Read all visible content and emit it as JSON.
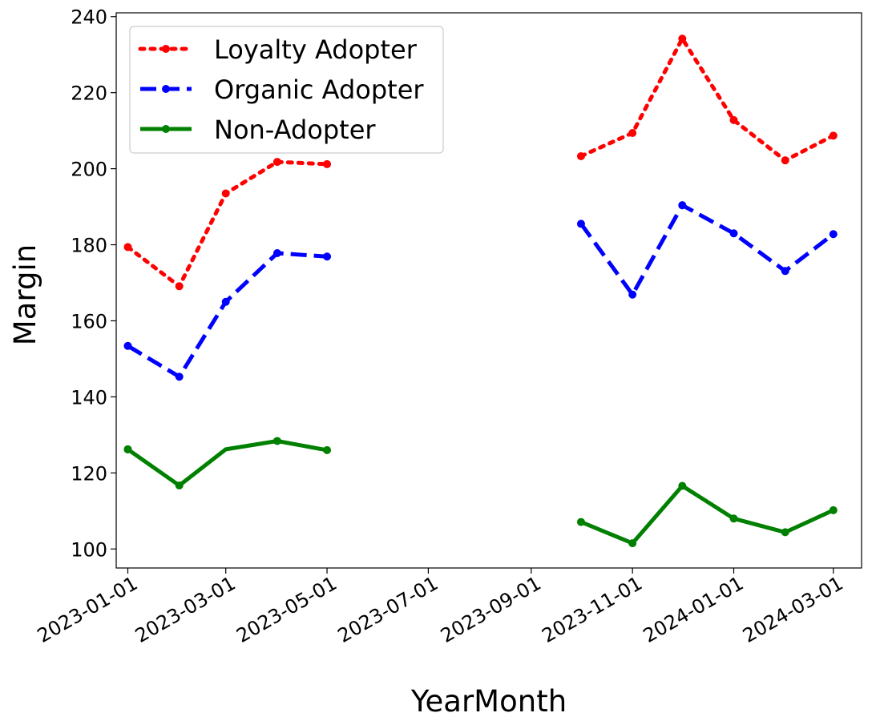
{
  "chart_data": {
    "type": "line",
    "xlabel": "YearMonth",
    "ylabel": "Margin",
    "ylim": [
      95,
      241
    ],
    "yticks": [
      100,
      120,
      140,
      160,
      180,
      200,
      220,
      240
    ],
    "xticks": [
      "2023-01-01",
      "2023-03-01",
      "2023-05-01",
      "2023-07-01",
      "2023-09-01",
      "2023-11-01",
      "2024-01-01",
      "2024-03-01"
    ],
    "x": [
      "2023-01-01",
      "2023-02-01",
      "2023-03-01",
      "2023-04-01",
      "2023-05-01",
      "2023-10-01",
      "2023-11-01",
      "2023-12-01",
      "2024-01-01",
      "2024-02-01",
      "2024-03-01"
    ],
    "segments": [
      [
        0,
        4
      ],
      [
        5,
        10
      ]
    ],
    "legend_position": "top-left",
    "series": [
      {
        "name": "Loyalty Adopter",
        "color": "#ff0000",
        "style": "dotted",
        "values": [
          179.4,
          169.1,
          193.5,
          201.8,
          201.2,
          203.3,
          209.4,
          234.2,
          212.8,
          202.2,
          208.7
        ]
      },
      {
        "name": "Organic Adopter",
        "color": "#0000ff",
        "style": "dashed",
        "values": [
          153.4,
          145.3,
          165.0,
          177.8,
          176.9,
          185.5,
          166.9,
          190.4,
          183.0,
          173.1,
          182.8
        ]
      },
      {
        "name": "Non-Adopter",
        "color": "#008000",
        "style": "solid",
        "values": [
          126.2,
          116.7,
          126.2,
          128.4,
          126.0,
          107.1,
          101.5,
          116.6,
          108.0,
          104.4,
          110.2
        ]
      }
    ]
  }
}
